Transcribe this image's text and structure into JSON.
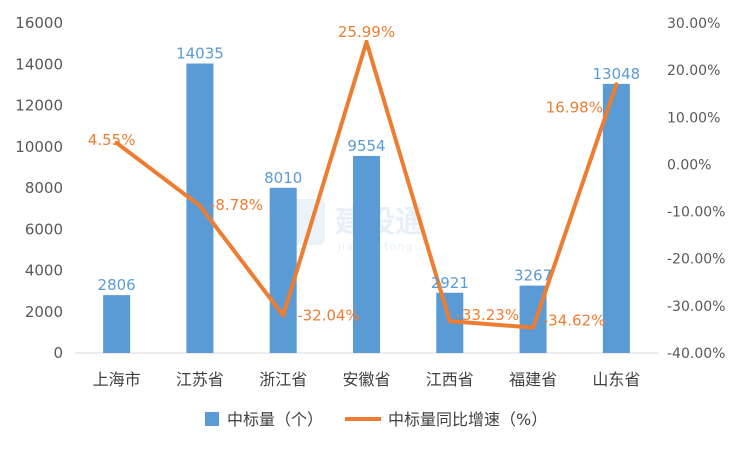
{
  "chart_data": {
    "type": "bar",
    "categories": [
      "上海市",
      "江苏省",
      "浙江省",
      "安徽省",
      "江西省",
      "福建省",
      "山东省"
    ],
    "series": [
      {
        "name": "中标量（个）",
        "type": "bar",
        "axis": "left",
        "values": [
          2806,
          14035,
          8010,
          9554,
          2921,
          3267,
          13048
        ],
        "labels": [
          "2806",
          "14035",
          "8010",
          "9554",
          "2921",
          "3267",
          "13048"
        ],
        "color": "#5b9bd5"
      },
      {
        "name": "中标量同比增速（%）",
        "type": "line",
        "axis": "right",
        "values": [
          4.55,
          -8.78,
          -32.04,
          25.99,
          -33.23,
          -34.62,
          16.98
        ],
        "labels": [
          "4.55%",
          "-8.78%",
          "-32.04%",
          "25.99%",
          "-33.23%",
          "-34.62%",
          "16.98%"
        ],
        "color": "#ed7d31"
      }
    ],
    "y_left": {
      "ylim": [
        0,
        16000
      ],
      "ticks": [
        "0",
        "2000",
        "4000",
        "6000",
        "8000",
        "10000",
        "12000",
        "14000",
        "16000"
      ]
    },
    "y_right": {
      "ylim": [
        -40,
        30
      ],
      "ticks": [
        "30.00%",
        "20.00%",
        "10.00%",
        "0.00%",
        "-10.00%",
        "-20.00%",
        "-30.00%",
        "-40.00%"
      ]
    },
    "grid": false,
    "legend": "bottom",
    "watermark": {
      "main": "建设通",
      "sub": "jianshetong"
    }
  }
}
